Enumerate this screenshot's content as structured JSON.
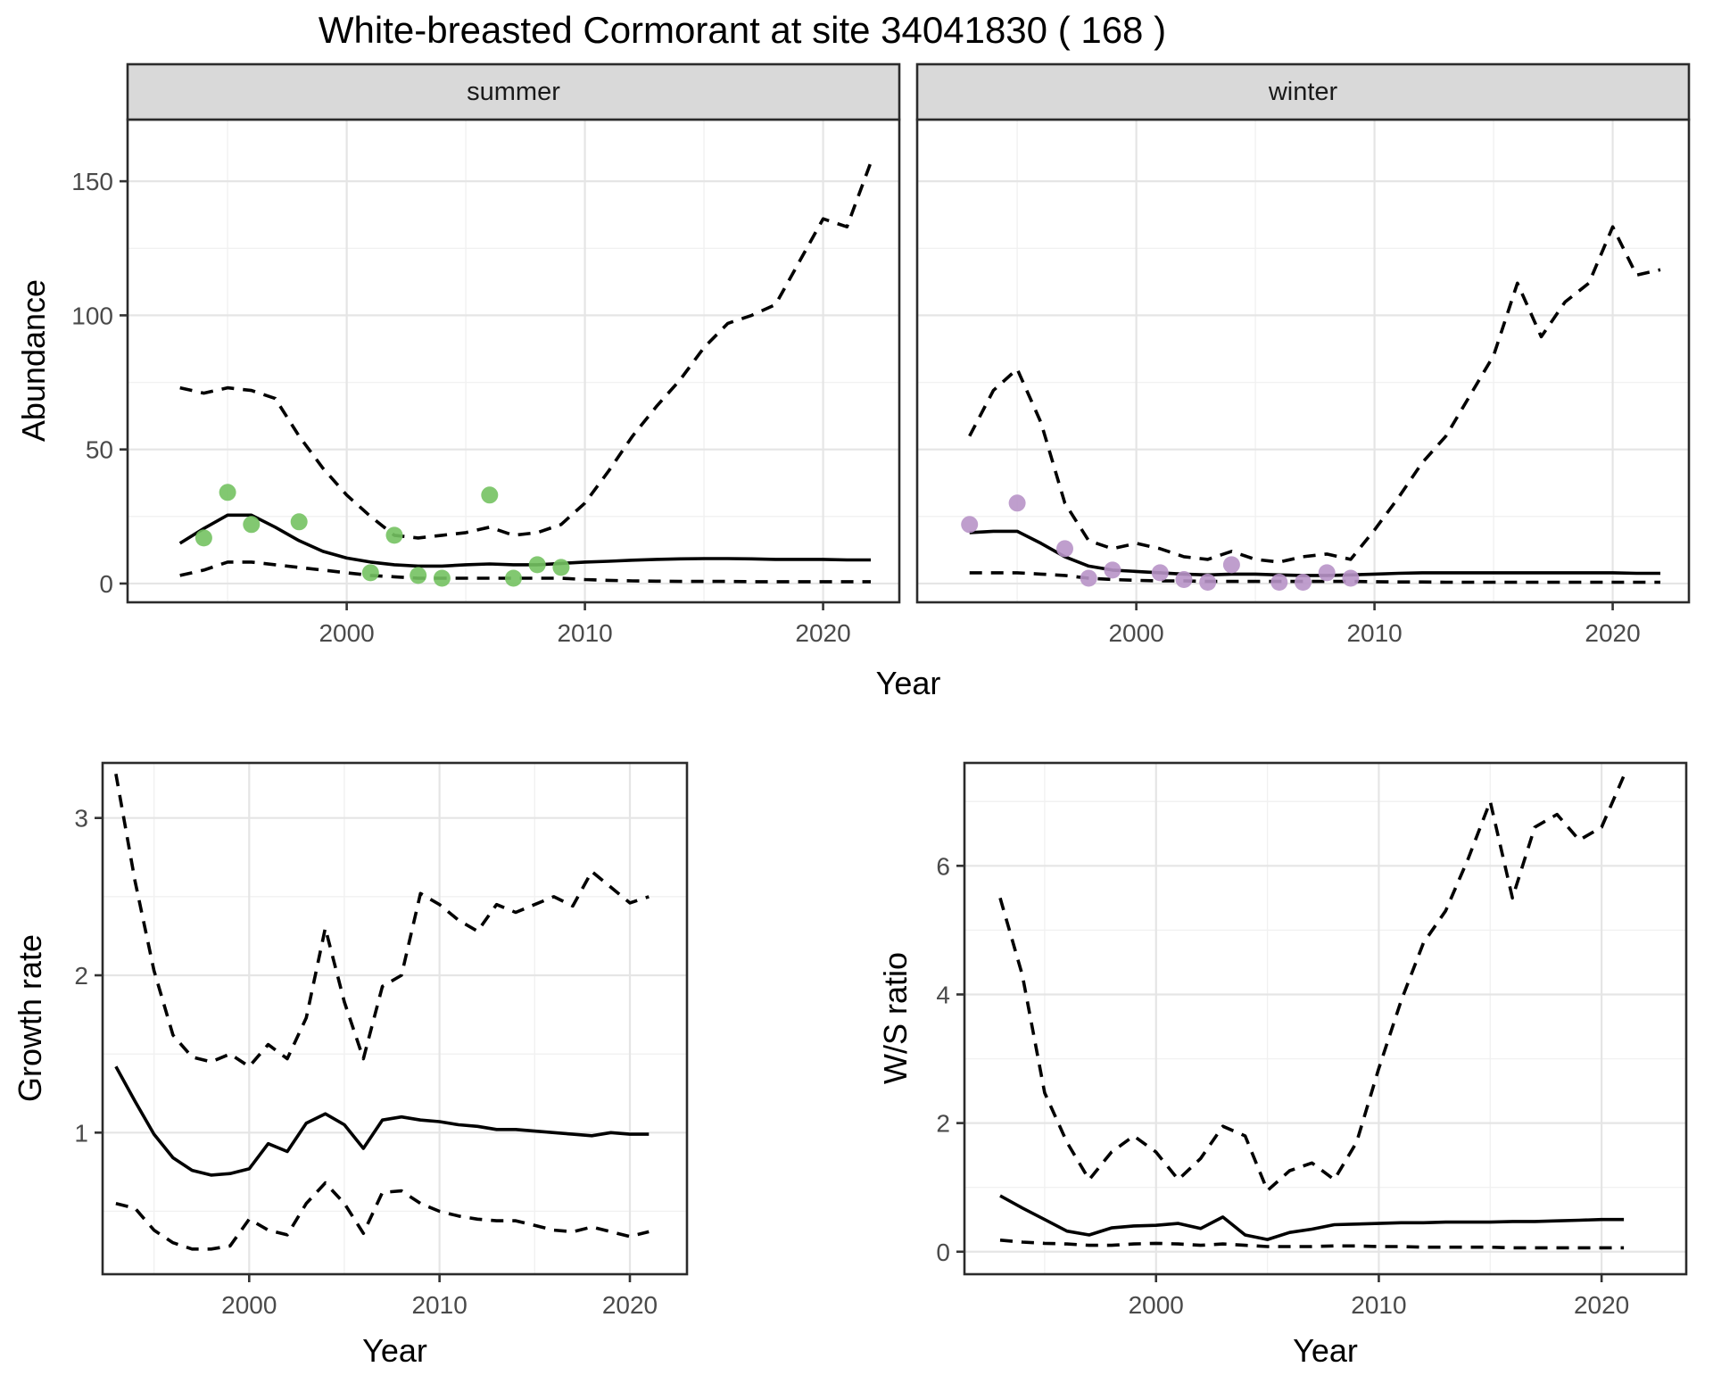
{
  "title": "White-breasted Cormorant at site 34041830 ( 168 )",
  "colors": {
    "summer_points": "#74c262",
    "winter_points": "#b894c8",
    "fit_line": "#000000",
    "ci_line": "#000000",
    "strip_bg": "#d9d9d9",
    "panel_border": "#2b2b2b",
    "grid_major": "#e5e5e5",
    "grid_minor": "#f1f1f1",
    "axis_text": "#4a4a4a",
    "tick_mark": "#333333"
  },
  "axis_titles": {
    "abundance_y": "Abundance",
    "abundance_x": "Year",
    "growth_y": "Growth rate",
    "growth_x": "Year",
    "ws_y": "W/S ratio",
    "ws_x": "Year"
  },
  "chart_data": [
    {
      "id": "abundance_summer",
      "type": "line",
      "title": "summer",
      "xlabel": "Year",
      "ylabel": "Abundance",
      "xlim": [
        1990.8,
        2023.2
      ],
      "ylim": [
        -7,
        173
      ],
      "xticks": [
        2000,
        2010,
        2020
      ],
      "xticks_minor": [
        1995,
        2005,
        2015
      ],
      "yticks": [
        0,
        50,
        100,
        150
      ],
      "yticks_minor": [
        25,
        75,
        125
      ],
      "grid": true,
      "legend": "none",
      "years": [
        1993,
        1994,
        1995,
        1996,
        1997,
        1998,
        1999,
        2000,
        2001,
        2002,
        2003,
        2004,
        2005,
        2006,
        2007,
        2008,
        2009,
        2010,
        2011,
        2012,
        2013,
        2014,
        2015,
        2016,
        2017,
        2018,
        2019,
        2020,
        2021,
        2022
      ],
      "series": [
        {
          "name": "model-fit",
          "style": "solid",
          "values": [
            15,
            20.5,
            25.5,
            25.5,
            21,
            16,
            12,
            9.5,
            8,
            7,
            6.5,
            6.5,
            7,
            7.3,
            7,
            7,
            7.5,
            8,
            8.3,
            8.7,
            9,
            9.2,
            9.3,
            9.3,
            9.2,
            9,
            9,
            9,
            8.8,
            8.8
          ]
        },
        {
          "name": "upper-ci",
          "style": "dashed",
          "values": [
            73,
            71,
            73,
            72,
            69,
            55,
            43,
            33,
            25,
            18,
            17,
            18,
            19,
            21,
            18,
            19,
            22,
            30,
            42,
            55,
            66,
            76,
            88,
            97,
            100,
            104,
            120,
            136,
            133,
            157
          ]
        },
        {
          "name": "lower-ci",
          "style": "dashed",
          "values": [
            3,
            5,
            8,
            8,
            7,
            6,
            5,
            4,
            3,
            2.5,
            2,
            2,
            2,
            2,
            2,
            2,
            2,
            1.5,
            1.2,
            1,
            0.9,
            0.8,
            0.8,
            0.8,
            0.7,
            0.7,
            0.7,
            0.7,
            0.7,
            0.7
          ]
        }
      ],
      "points": {
        "name": "observed-count",
        "color_key": "summer_points",
        "xy": [
          [
            1994,
            17
          ],
          [
            1995,
            34
          ],
          [
            1996,
            22
          ],
          [
            1998,
            23
          ],
          [
            2001,
            4
          ],
          [
            2002,
            18
          ],
          [
            2003,
            3
          ],
          [
            2004,
            2
          ],
          [
            2006,
            33
          ],
          [
            2007,
            2
          ],
          [
            2008,
            7
          ],
          [
            2009,
            6
          ]
        ]
      }
    },
    {
      "id": "abundance_winter",
      "type": "line",
      "title": "winter",
      "xlabel": "Year",
      "ylabel": "Abundance",
      "xlim": [
        1990.8,
        2023.2
      ],
      "ylim": [
        -7,
        173
      ],
      "xticks": [
        2000,
        2010,
        2020
      ],
      "xticks_minor": [
        1995,
        2005,
        2015
      ],
      "yticks": [
        0,
        50,
        100,
        150
      ],
      "yticks_minor": [
        25,
        75,
        125
      ],
      "grid": true,
      "legend": "none",
      "years": [
        1993,
        1994,
        1995,
        1996,
        1997,
        1998,
        1999,
        2000,
        2001,
        2002,
        2003,
        2004,
        2005,
        2006,
        2007,
        2008,
        2009,
        2010,
        2011,
        2012,
        2013,
        2014,
        2015,
        2016,
        2017,
        2018,
        2019,
        2020,
        2021,
        2022
      ],
      "series": [
        {
          "name": "model-fit",
          "style": "solid",
          "values": [
            19,
            19.5,
            19.5,
            15,
            10,
            6.5,
            5,
            4.5,
            4,
            3.5,
            3.2,
            3.5,
            3.5,
            3.2,
            3,
            3,
            3.2,
            3.5,
            3.8,
            4,
            4,
            4,
            4,
            4,
            4,
            4,
            4,
            4,
            3.8,
            3.8
          ]
        },
        {
          "name": "upper-ci",
          "style": "dashed",
          "values": [
            55,
            72,
            80,
            60,
            30,
            16,
            13,
            15,
            13,
            10,
            9,
            12,
            9,
            8,
            10,
            11,
            9,
            20,
            32,
            45,
            55,
            70,
            85,
            112,
            92,
            105,
            112,
            133,
            115,
            117
          ]
        },
        {
          "name": "lower-ci",
          "style": "dashed",
          "values": [
            4,
            4,
            4,
            3.5,
            3,
            2,
            1.5,
            1.2,
            1,
            1,
            0.8,
            0.8,
            0.8,
            0.8,
            0.8,
            0.8,
            0.8,
            0.7,
            0.6,
            0.6,
            0.5,
            0.5,
            0.5,
            0.5,
            0.5,
            0.5,
            0.5,
            0.5,
            0.5,
            0.5
          ]
        }
      ],
      "points": {
        "name": "observed-count",
        "color_key": "winter_points",
        "xy": [
          [
            1993,
            22
          ],
          [
            1995,
            30
          ],
          [
            1997,
            13
          ],
          [
            1998,
            2
          ],
          [
            1999,
            5
          ],
          [
            2001,
            4
          ],
          [
            2002,
            1.5
          ],
          [
            2003,
            0.5
          ],
          [
            2004,
            7
          ],
          [
            2006,
            0.5
          ],
          [
            2007,
            0.5
          ],
          [
            2008,
            4
          ],
          [
            2009,
            2
          ]
        ]
      }
    },
    {
      "id": "growth_rate",
      "type": "line",
      "title": "",
      "xlabel": "Year",
      "ylabel": "Growth rate",
      "xlim": [
        1992.3,
        2023.0
      ],
      "ylim": [
        0.1,
        3.35
      ],
      "xticks": [
        2000,
        2010,
        2020
      ],
      "xticks_minor": [
        1995,
        2005,
        2015
      ],
      "yticks": [
        1,
        2,
        3
      ],
      "yticks_minor": [
        0.5,
        1.5,
        2.5
      ],
      "grid": true,
      "legend": "none",
      "years": [
        1993,
        1994,
        1995,
        1996,
        1997,
        1998,
        1999,
        2000,
        2001,
        2002,
        2003,
        2004,
        2005,
        2006,
        2007,
        2008,
        2009,
        2010,
        2011,
        2012,
        2013,
        2014,
        2015,
        2016,
        2017,
        2018,
        2019,
        2020,
        2021
      ],
      "series": [
        {
          "name": "model-fit",
          "style": "solid",
          "values": [
            1.42,
            1.2,
            0.99,
            0.84,
            0.76,
            0.73,
            0.74,
            0.77,
            0.93,
            0.88,
            1.06,
            1.12,
            1.05,
            0.9,
            1.08,
            1.1,
            1.08,
            1.07,
            1.05,
            1.04,
            1.02,
            1.02,
            1.01,
            1.0,
            0.99,
            0.98,
            1.0,
            0.99,
            0.99
          ]
        },
        {
          "name": "upper-ci",
          "style": "dashed",
          "values": [
            3.28,
            2.6,
            2.03,
            1.62,
            1.48,
            1.45,
            1.5,
            1.42,
            1.56,
            1.47,
            1.73,
            2.3,
            1.83,
            1.47,
            1.93,
            2.0,
            2.52,
            2.45,
            2.35,
            2.28,
            2.45,
            2.4,
            2.45,
            2.5,
            2.44,
            2.66,
            2.56,
            2.46,
            2.5
          ]
        },
        {
          "name": "lower-ci",
          "style": "dashed",
          "values": [
            0.55,
            0.52,
            0.38,
            0.3,
            0.26,
            0.26,
            0.28,
            0.45,
            0.38,
            0.35,
            0.55,
            0.68,
            0.55,
            0.36,
            0.62,
            0.63,
            0.55,
            0.5,
            0.47,
            0.45,
            0.44,
            0.44,
            0.41,
            0.38,
            0.37,
            0.4,
            0.37,
            0.34,
            0.37
          ]
        }
      ],
      "points": null
    },
    {
      "id": "ws_ratio",
      "type": "line",
      "title": "",
      "xlabel": "Year",
      "ylabel": "W/S ratio",
      "xlim": [
        1991.4,
        2023.8
      ],
      "ylim": [
        -0.35,
        7.6
      ],
      "xticks": [
        2000,
        2010,
        2020
      ],
      "xticks_minor": [
        1995,
        2005,
        2015
      ],
      "yticks": [
        0,
        2,
        4,
        6
      ],
      "yticks_minor": [
        1,
        3,
        5,
        7
      ],
      "grid": true,
      "legend": "none",
      "years": [
        1993,
        1994,
        1995,
        1996,
        1997,
        1998,
        1999,
        2000,
        2001,
        2002,
        2003,
        2004,
        2005,
        2006,
        2007,
        2008,
        2009,
        2010,
        2011,
        2012,
        2013,
        2014,
        2015,
        2016,
        2017,
        2018,
        2019,
        2020,
        2021
      ],
      "series": [
        {
          "name": "model-fit",
          "style": "solid",
          "values": [
            0.87,
            0.68,
            0.5,
            0.32,
            0.26,
            0.37,
            0.4,
            0.41,
            0.44,
            0.36,
            0.54,
            0.26,
            0.19,
            0.3,
            0.35,
            0.42,
            0.43,
            0.44,
            0.45,
            0.45,
            0.46,
            0.46,
            0.46,
            0.47,
            0.47,
            0.48,
            0.49,
            0.5,
            0.5
          ]
        },
        {
          "name": "upper-ci",
          "style": "dashed",
          "values": [
            5.5,
            4.3,
            2.47,
            1.7,
            1.12,
            1.55,
            1.8,
            1.55,
            1.12,
            1.45,
            1.95,
            1.8,
            0.95,
            1.26,
            1.38,
            1.12,
            1.7,
            2.85,
            3.9,
            4.8,
            5.3,
            6.1,
            7.0,
            5.5,
            6.6,
            6.8,
            6.4,
            6.6,
            7.4
          ]
        },
        {
          "name": "lower-ci",
          "style": "dashed",
          "values": [
            0.18,
            0.15,
            0.13,
            0.12,
            0.1,
            0.1,
            0.12,
            0.13,
            0.12,
            0.1,
            0.12,
            0.1,
            0.08,
            0.08,
            0.08,
            0.09,
            0.09,
            0.08,
            0.08,
            0.07,
            0.07,
            0.07,
            0.07,
            0.06,
            0.06,
            0.06,
            0.06,
            0.06,
            0.06
          ]
        }
      ],
      "points": null
    }
  ]
}
